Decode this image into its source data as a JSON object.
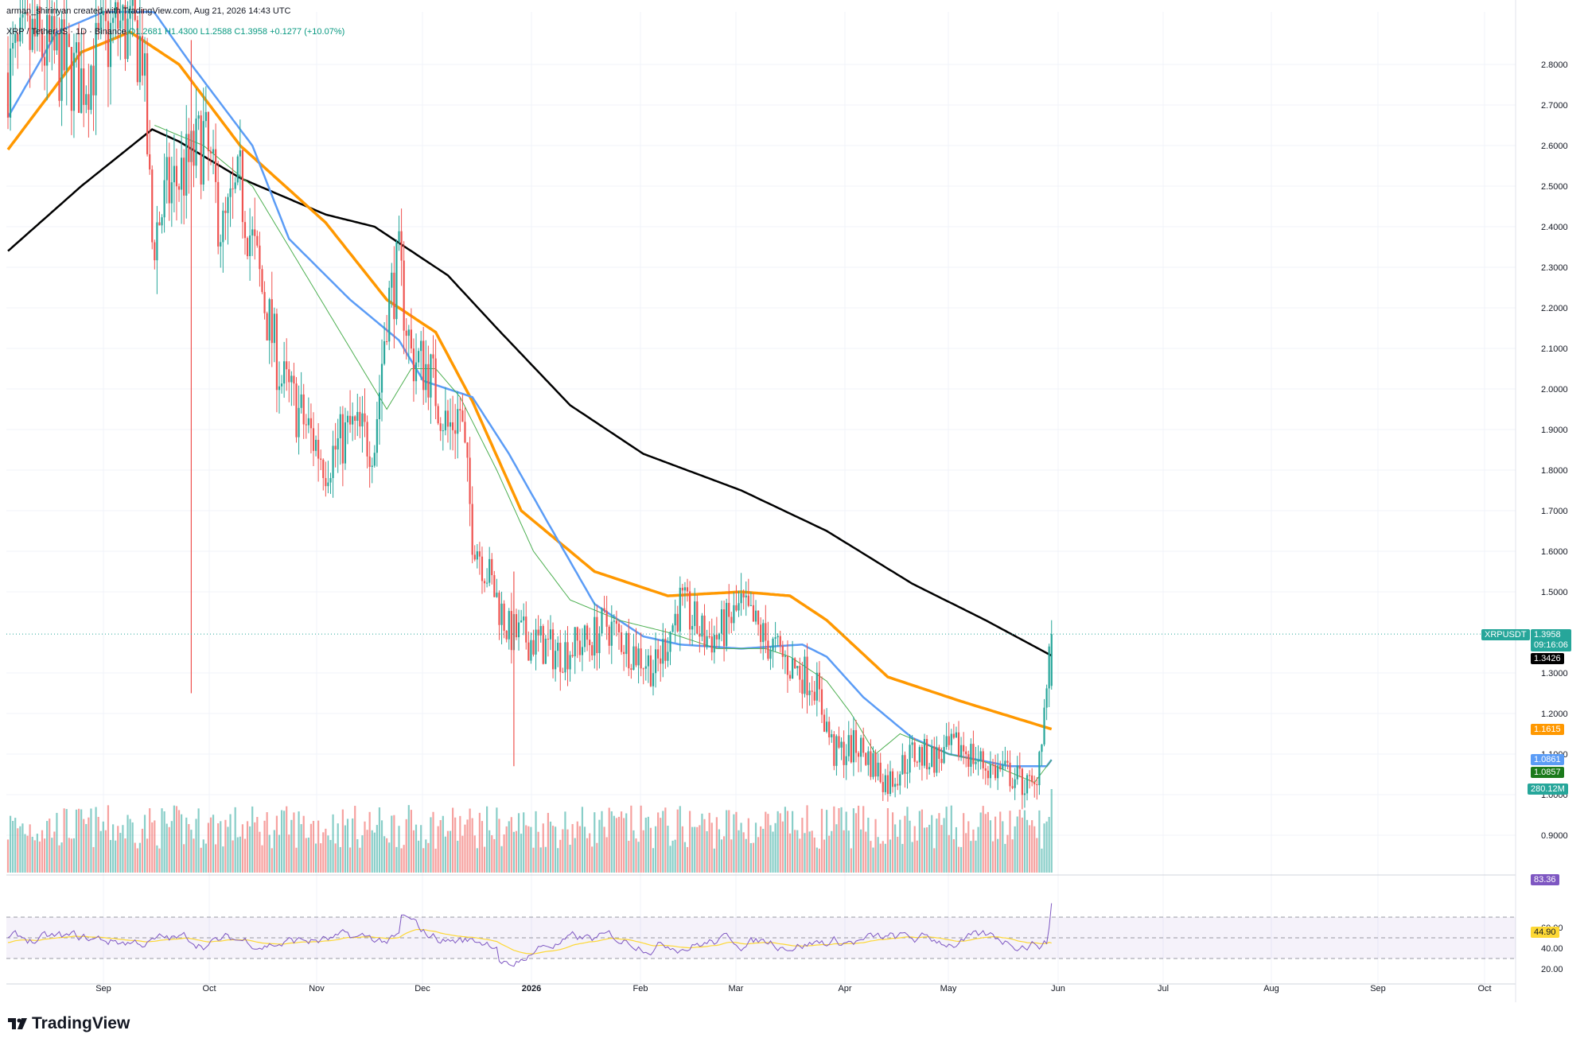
{
  "header": {
    "created_line": "arman_shirinyan created with TradingView.com, Aug 21, 2026 14:43 UTC",
    "symbol": "XRP / TetherUS · 1D · Binance",
    "ohlc_o": "O1.2681",
    "ohlc_h": "H1.4300",
    "ohlc_l": "L1.2588",
    "ohlc_c": "C1.3958",
    "change": "+0.1277 (+10.07%)"
  },
  "price_labels": {
    "symbol_tag": "XRPUSDT",
    "last": "1.3958",
    "countdown": "09:16:06",
    "ma_black": "1.3426",
    "ma_orange": "1.1615",
    "ma_blue": "1.0861",
    "ma_green": "1.0857",
    "volume": "280.12M",
    "rsi": "83.36",
    "rsi_ma": "44.90"
  },
  "colors": {
    "up": "#26a69a",
    "down": "#ef5350",
    "ma_black": "#000000",
    "ma_orange": "#ff9800",
    "ma_blue": "#5b9cf6",
    "ma_green": "#4caf50",
    "rsi_line": "#7e57c2",
    "rsi_ma": "#fdd835",
    "grid": "#f0f3fa"
  },
  "logo": {
    "text": "TradingView",
    "icon": "tradingview-logo-icon"
  },
  "chart_data": {
    "type": "candlestick",
    "symbol": "XRP / TetherUS",
    "interval": "1D",
    "exchange": "Binance",
    "price_axis": [
      "2.8000",
      "2.7000",
      "2.6000",
      "2.5000",
      "2.4000",
      "2.3000",
      "2.2000",
      "2.1000",
      "2.0000",
      "1.9000",
      "1.8000",
      "1.7000",
      "1.6000",
      "1.5000",
      "1.3000",
      "1.2000",
      "1.1000",
      "1.0000",
      "0.9000"
    ],
    "ylim": [
      0.85,
      2.92
    ],
    "time_axis": [
      "Sep",
      "Oct",
      "Nov",
      "Dec",
      "2026",
      "Feb",
      "Mar",
      "Apr",
      "May",
      "Jun",
      "Jul",
      "Aug",
      "Sep",
      "Oct"
    ],
    "price_path": [
      [
        0,
        2.78
      ],
      [
        10,
        2.86
      ],
      [
        30,
        2.76
      ],
      [
        45,
        2.9
      ],
      [
        55,
        2.84
      ],
      [
        59,
        2.36
      ],
      [
        65,
        2.48
      ],
      [
        75,
        2.56
      ],
      [
        80,
        2.62
      ],
      [
        88,
        2.38
      ],
      [
        95,
        2.5
      ],
      [
        104,
        2.24
      ],
      [
        112,
        2.02
      ],
      [
        120,
        1.93
      ],
      [
        130,
        1.82
      ],
      [
        140,
        1.9
      ],
      [
        150,
        1.87
      ],
      [
        155,
        2.2
      ],
      [
        160,
        2.3
      ],
      [
        165,
        2.08
      ],
      [
        172,
        2.05
      ],
      [
        180,
        1.9
      ],
      [
        185,
        1.95
      ],
      [
        190,
        1.65
      ],
      [
        196,
        1.55
      ],
      [
        205,
        1.4
      ],
      [
        215,
        1.38
      ],
      [
        225,
        1.35
      ],
      [
        238,
        1.38
      ],
      [
        245,
        1.42
      ],
      [
        255,
        1.36
      ],
      [
        265,
        1.31
      ],
      [
        275,
        1.47
      ],
      [
        285,
        1.39
      ],
      [
        290,
        1.39
      ],
      [
        300,
        1.46
      ],
      [
        310,
        1.38
      ],
      [
        320,
        1.32
      ],
      [
        330,
        1.28
      ],
      [
        338,
        1.1
      ],
      [
        348,
        1.12
      ],
      [
        360,
        1.03
      ],
      [
        370,
        1.1
      ],
      [
        380,
        1.09
      ],
      [
        390,
        1.12
      ],
      [
        400,
        1.07
      ],
      [
        410,
        1.05
      ],
      [
        420,
        1.01
      ],
      [
        425,
        1.26
      ],
      [
        427,
        1.3958
      ]
    ],
    "moving_averages": [
      {
        "color": "black",
        "last": 1.3426,
        "points": [
          [
            0,
            2.34
          ],
          [
            30,
            2.5
          ],
          [
            59,
            2.64
          ],
          [
            70,
            2.61
          ],
          [
            95,
            2.52
          ],
          [
            130,
            2.43
          ],
          [
            150,
            2.4
          ],
          [
            165,
            2.34
          ],
          [
            180,
            2.28
          ],
          [
            200,
            2.15
          ],
          [
            230,
            1.96
          ],
          [
            260,
            1.84
          ],
          [
            300,
            1.75
          ],
          [
            335,
            1.65
          ],
          [
            370,
            1.52
          ],
          [
            400,
            1.43
          ],
          [
            427,
            1.3426
          ]
        ]
      },
      {
        "color": "orange",
        "last": 1.1615,
        "points": [
          [
            0,
            2.59
          ],
          [
            30,
            2.83
          ],
          [
            50,
            2.88
          ],
          [
            70,
            2.8
          ],
          [
            95,
            2.6
          ],
          [
            130,
            2.41
          ],
          [
            155,
            2.22
          ],
          [
            175,
            2.14
          ],
          [
            190,
            1.97
          ],
          [
            210,
            1.7
          ],
          [
            240,
            1.55
          ],
          [
            270,
            1.49
          ],
          [
            300,
            1.5
          ],
          [
            320,
            1.49
          ],
          [
            335,
            1.43
          ],
          [
            360,
            1.29
          ],
          [
            390,
            1.23
          ],
          [
            427,
            1.1615
          ]
        ]
      },
      {
        "color": "blue",
        "last": 1.0861,
        "points": [
          [
            0,
            2.67
          ],
          [
            20,
            2.88
          ],
          [
            55,
            2.97
          ],
          [
            75,
            2.8
          ],
          [
            100,
            2.6
          ],
          [
            115,
            2.37
          ],
          [
            140,
            2.22
          ],
          [
            160,
            2.12
          ],
          [
            170,
            2.02
          ],
          [
            190,
            1.98
          ],
          [
            205,
            1.84
          ],
          [
            220,
            1.68
          ],
          [
            240,
            1.47
          ],
          [
            260,
            1.39
          ],
          [
            275,
            1.37
          ],
          [
            300,
            1.36
          ],
          [
            325,
            1.37
          ],
          [
            335,
            1.34
          ],
          [
            350,
            1.24
          ],
          [
            370,
            1.14
          ],
          [
            385,
            1.1
          ],
          [
            410,
            1.07
          ],
          [
            425,
            1.07
          ],
          [
            427,
            1.0861
          ]
        ]
      },
      {
        "color": "green",
        "last": 1.0857,
        "points": [
          [
            60,
            2.65
          ],
          [
            80,
            2.6
          ],
          [
            100,
            2.5
          ],
          [
            120,
            2.3
          ],
          [
            140,
            2.1
          ],
          [
            155,
            1.95
          ],
          [
            165,
            2.05
          ],
          [
            175,
            2.05
          ],
          [
            185,
            1.98
          ],
          [
            200,
            1.8
          ],
          [
            215,
            1.6
          ],
          [
            230,
            1.48
          ],
          [
            250,
            1.43
          ],
          [
            270,
            1.4
          ],
          [
            290,
            1.36
          ],
          [
            310,
            1.36
          ],
          [
            320,
            1.34
          ],
          [
            335,
            1.28
          ],
          [
            345,
            1.2
          ],
          [
            355,
            1.1
          ],
          [
            365,
            1.15
          ],
          [
            385,
            1.1
          ],
          [
            400,
            1.08
          ],
          [
            420,
            1.03
          ],
          [
            427,
            1.0857
          ]
        ]
      }
    ],
    "volume_last": "280.12M",
    "rsi": {
      "levels": [
        "60.00",
        "40.00",
        "20.00"
      ],
      "last": 83.36,
      "ma_last": 44.9,
      "band": [
        30,
        70
      ]
    }
  }
}
